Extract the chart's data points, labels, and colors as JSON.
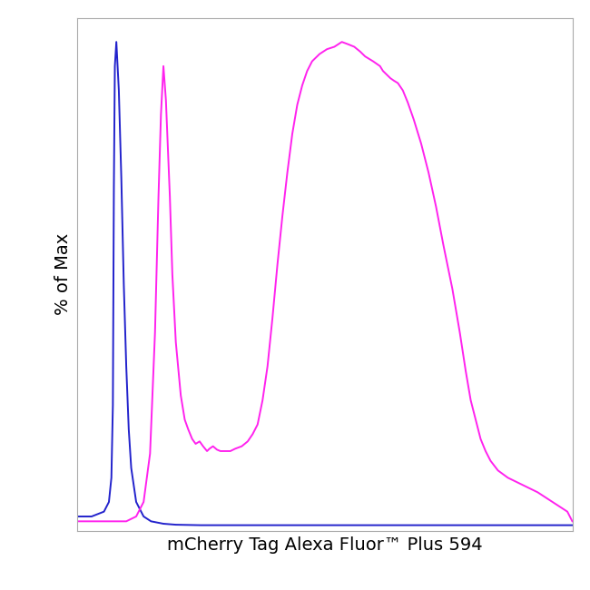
{
  "xlabel": "mCherry Tag Alexa Fluor™ Plus 594",
  "ylabel": "% of Max",
  "xlabel_fontsize": 14,
  "ylabel_fontsize": 14,
  "background_color": "#ffffff",
  "plot_bg_color": "#ffffff",
  "line_color_blue": "#2222cc",
  "line_color_magenta": "#ff22ee",
  "line_width": 1.4,
  "xlim": [
    0,
    1000
  ],
  "ylim": [
    -0.01,
    1.05
  ],
  "blue_curve_x": [
    0,
    30,
    55,
    65,
    70,
    73,
    75,
    77,
    80,
    85,
    90,
    95,
    100,
    105,
    110,
    120,
    135,
    150,
    175,
    200,
    250,
    300,
    400,
    500,
    600,
    700,
    800,
    900,
    1000
  ],
  "blue_curve_y": [
    0.02,
    0.02,
    0.03,
    0.05,
    0.1,
    0.25,
    0.7,
    0.95,
    1.0,
    0.9,
    0.72,
    0.5,
    0.33,
    0.2,
    0.12,
    0.05,
    0.02,
    0.01,
    0.005,
    0.003,
    0.002,
    0.002,
    0.002,
    0.002,
    0.002,
    0.002,
    0.002,
    0.002,
    0.002
  ],
  "magenta_curve_x": [
    0,
    50,
    100,
    120,
    135,
    148,
    158,
    165,
    170,
    175,
    180,
    188,
    193,
    200,
    210,
    218,
    225,
    233,
    240,
    248,
    255,
    263,
    268,
    275,
    283,
    290,
    300,
    310,
    320,
    333,
    345,
    355,
    365,
    375,
    385,
    395,
    405,
    415,
    425,
    435,
    445,
    455,
    465,
    475,
    490,
    505,
    520,
    535,
    548,
    560,
    572,
    582,
    590,
    598,
    605,
    612,
    618,
    623,
    628,
    633,
    640,
    648,
    658,
    668,
    680,
    695,
    710,
    725,
    740,
    758,
    773,
    785,
    795,
    805,
    815,
    825,
    835,
    850,
    870,
    900,
    930,
    960,
    990,
    1000
  ],
  "magenta_curve_y": [
    0.01,
    0.01,
    0.01,
    0.02,
    0.05,
    0.15,
    0.4,
    0.68,
    0.85,
    0.95,
    0.88,
    0.68,
    0.52,
    0.38,
    0.27,
    0.22,
    0.2,
    0.18,
    0.17,
    0.175,
    0.165,
    0.155,
    0.16,
    0.165,
    0.158,
    0.155,
    0.155,
    0.155,
    0.16,
    0.165,
    0.175,
    0.19,
    0.21,
    0.26,
    0.33,
    0.43,
    0.54,
    0.64,
    0.73,
    0.81,
    0.87,
    0.91,
    0.94,
    0.96,
    0.975,
    0.985,
    0.99,
    1.0,
    0.995,
    0.99,
    0.98,
    0.97,
    0.965,
    0.96,
    0.955,
    0.95,
    0.94,
    0.935,
    0.93,
    0.925,
    0.92,
    0.915,
    0.9,
    0.875,
    0.84,
    0.79,
    0.73,
    0.66,
    0.58,
    0.49,
    0.4,
    0.32,
    0.26,
    0.22,
    0.18,
    0.155,
    0.135,
    0.115,
    0.1,
    0.085,
    0.07,
    0.05,
    0.03,
    0.01
  ]
}
